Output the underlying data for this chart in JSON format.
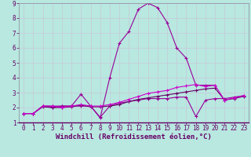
{
  "background_color": "#b8e8e0",
  "grid_color": "#c8c8d8",
  "line_color1": "#990099",
  "line_color2": "#990099",
  "line_color3": "#660066",
  "line_color4": "#cc00cc",
  "xlim": [
    -0.5,
    23.5
  ],
  "ylim": [
    1,
    9
  ],
  "xlabel": "Windchill (Refroidissement éolien,°C)",
  "xlabel_color": "#660066",
  "xticks": [
    0,
    1,
    2,
    3,
    4,
    5,
    6,
    7,
    8,
    9,
    10,
    11,
    12,
    13,
    14,
    15,
    16,
    17,
    18,
    19,
    20,
    21,
    22,
    23
  ],
  "yticks": [
    1,
    2,
    3,
    4,
    5,
    6,
    7,
    8,
    9
  ],
  "line1_x": [
    0,
    1,
    2,
    3,
    4,
    5,
    6,
    7,
    8,
    9,
    10,
    11,
    12,
    13,
    14,
    15,
    16,
    17,
    18,
    19,
    20
  ],
  "line1_y": [
    1.6,
    1.6,
    2.1,
    2.1,
    2.1,
    2.1,
    2.1,
    2.1,
    1.3,
    4.0,
    6.3,
    7.1,
    8.6,
    9.0,
    8.7,
    7.7,
    6.0,
    5.3,
    3.5,
    3.5,
    3.5
  ],
  "line2_x": [
    0,
    1,
    2,
    3,
    4,
    5,
    6,
    7,
    8,
    9,
    10,
    11,
    12,
    13,
    14,
    15,
    16,
    17,
    18,
    19,
    20,
    21,
    22,
    23
  ],
  "line2_y": [
    1.6,
    1.6,
    2.1,
    2.0,
    2.1,
    2.1,
    2.9,
    2.1,
    1.35,
    2.1,
    2.3,
    2.4,
    2.5,
    2.6,
    2.6,
    2.6,
    2.7,
    2.7,
    1.4,
    2.5,
    2.6,
    2.6,
    2.7,
    2.8
  ],
  "line3_x": [
    0,
    1,
    2,
    3,
    4,
    5,
    6,
    7,
    8,
    9,
    10,
    11,
    12,
    13,
    14,
    15,
    16,
    17,
    18,
    19,
    20,
    21,
    22,
    23
  ],
  "line3_y": [
    1.6,
    1.6,
    2.05,
    2.0,
    2.0,
    2.05,
    2.15,
    2.05,
    2.05,
    2.1,
    2.2,
    2.4,
    2.55,
    2.65,
    2.75,
    2.85,
    2.95,
    3.05,
    3.15,
    3.25,
    3.3,
    2.5,
    2.6,
    2.75
  ],
  "line4_x": [
    0,
    1,
    2,
    3,
    4,
    5,
    6,
    7,
    8,
    9,
    10,
    11,
    12,
    13,
    14,
    15,
    16,
    17,
    18,
    19,
    20,
    21,
    22,
    23
  ],
  "line4_y": [
    1.6,
    1.6,
    2.1,
    2.1,
    2.0,
    2.1,
    2.2,
    2.1,
    2.1,
    2.2,
    2.35,
    2.55,
    2.75,
    2.95,
    3.05,
    3.15,
    3.35,
    3.45,
    3.55,
    3.4,
    3.5,
    2.5,
    2.65,
    2.8
  ],
  "markersize": 3,
  "linewidth": 0.8,
  "tick_fontsize": 5.5,
  "xlabel_fontsize": 6.5
}
